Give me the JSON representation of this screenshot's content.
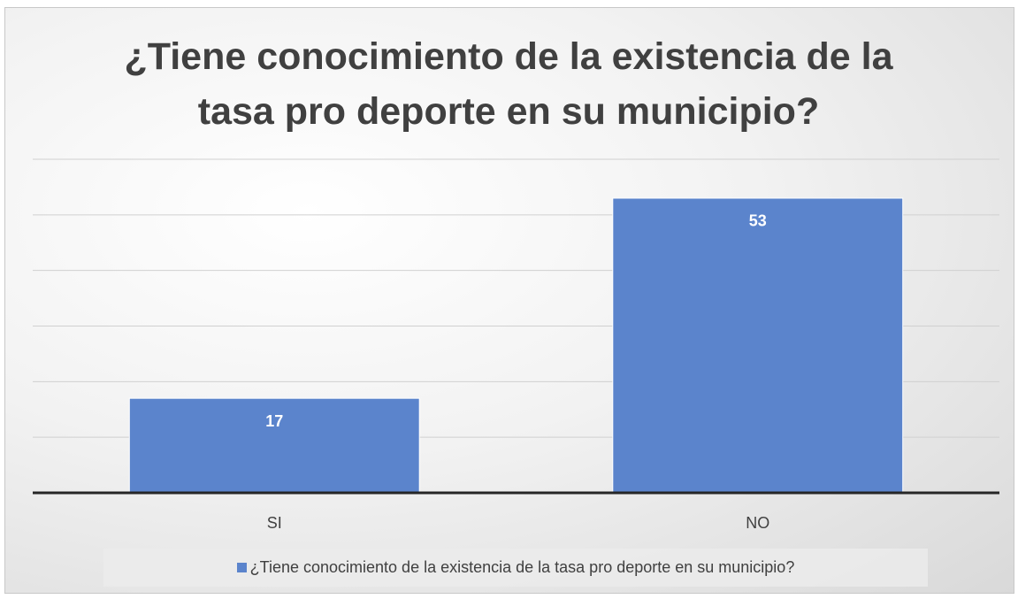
{
  "chart_data": {
    "type": "bar",
    "title": "¿Tiene conocimiento de la existencia de la tasa pro deporte en su municipio?",
    "categories": [
      "SI",
      "NO"
    ],
    "series": [
      {
        "name": "¿Tiene conocimiento de la existencia de la tasa pro deporte en su municipio?",
        "color": "#5b84cc",
        "values": [
          17,
          53
        ]
      }
    ],
    "ylim": [
      0,
      60
    ],
    "yticks": [
      0,
      10,
      20,
      30,
      40,
      50,
      60
    ],
    "grid": true,
    "legend": "bottom"
  }
}
